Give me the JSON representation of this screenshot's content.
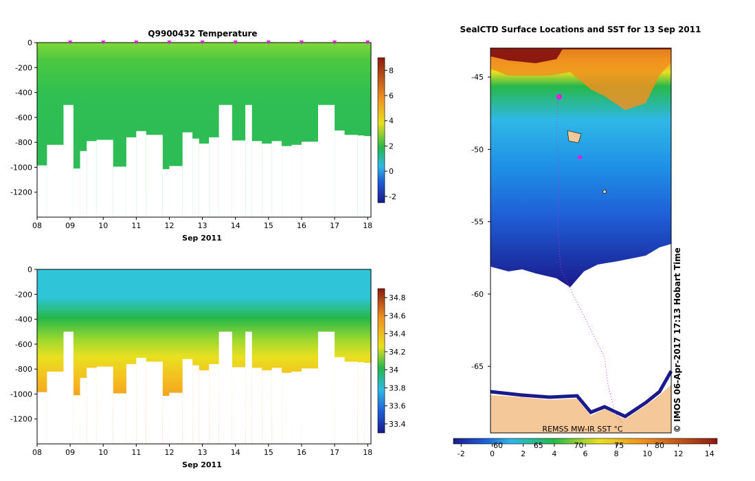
{
  "chart_data": [
    {
      "type": "heatmap",
      "title": "Q9900432  Temperature",
      "xlabel": "Sep 2011",
      "ylabel": "",
      "x_ticks": [
        "08",
        "09",
        "10",
        "11",
        "12",
        "13",
        "14",
        "15",
        "16",
        "17",
        "18"
      ],
      "x_range": [
        8,
        18.1
      ],
      "y_ticks": [
        0,
        -200,
        -400,
        -600,
        -800,
        -1000,
        -1200
      ],
      "ylim": [
        -1400,
        0
      ],
      "colorbar_ticks": [
        8,
        6,
        4,
        2,
        0,
        -2
      ],
      "colorbar_range": [
        -2.5,
        9
      ],
      "profile_markers": [
        9,
        10,
        11,
        12,
        13,
        14,
        15,
        16,
        17,
        18
      ],
      "profile_depths": [
        {
          "x": 8.0,
          "depth": -985
        },
        {
          "x": 8.3,
          "depth": -820
        },
        {
          "x": 8.8,
          "depth": -500
        },
        {
          "x": 9.1,
          "depth": -1010
        },
        {
          "x": 9.3,
          "depth": -870
        },
        {
          "x": 9.5,
          "depth": -790
        },
        {
          "x": 9.8,
          "depth": -780
        },
        {
          "x": 10.3,
          "depth": -995
        },
        {
          "x": 10.7,
          "depth": -760
        },
        {
          "x": 11.0,
          "depth": -710
        },
        {
          "x": 11.3,
          "depth": -740
        },
        {
          "x": 11.8,
          "depth": -1015
        },
        {
          "x": 12.0,
          "depth": -990
        },
        {
          "x": 12.4,
          "depth": -720
        },
        {
          "x": 12.7,
          "depth": -770
        },
        {
          "x": 12.9,
          "depth": -810
        },
        {
          "x": 13.2,
          "depth": -760
        },
        {
          "x": 13.5,
          "depth": -500
        },
        {
          "x": 13.9,
          "depth": -785
        },
        {
          "x": 14.3,
          "depth": -500
        },
        {
          "x": 14.5,
          "depth": -790
        },
        {
          "x": 14.8,
          "depth": -810
        },
        {
          "x": 15.1,
          "depth": -790
        },
        {
          "x": 15.4,
          "depth": -830
        },
        {
          "x": 15.7,
          "depth": -820
        },
        {
          "x": 16.0,
          "depth": -795
        },
        {
          "x": 16.5,
          "depth": -500
        },
        {
          "x": 17.0,
          "depth": -705
        },
        {
          "x": 17.3,
          "depth": -740
        },
        {
          "x": 17.7,
          "depth": -745
        },
        {
          "x": 17.9,
          "depth": -750
        }
      ]
    },
    {
      "type": "heatmap",
      "title": "",
      "xlabel": "Sep 2011",
      "ylabel": "",
      "x_ticks": [
        "08",
        "09",
        "10",
        "11",
        "12",
        "13",
        "14",
        "15",
        "16",
        "17",
        "18"
      ],
      "x_range": [
        8,
        18.1
      ],
      "y_ticks": [
        0,
        -200,
        -400,
        -600,
        -800,
        -1000,
        -1200
      ],
      "ylim": [
        -1400,
        0
      ],
      "colorbar_ticks": [
        34.8,
        34.6,
        34.4,
        34.2,
        34,
        33.8,
        33.6,
        33.4
      ],
      "colorbar_range": [
        33.3,
        34.9
      ]
    },
    {
      "type": "heatmap",
      "title": "SealCTD Surface Locations and SST for 13 Sep 2011",
      "xlabel": "",
      "ylabel": "",
      "y_ticks": [
        -45,
        -50,
        -55,
        -60,
        -65
      ],
      "lat_range": [
        -69.6,
        -43.0
      ],
      "colorbar_ticks": [
        -2,
        0,
        2,
        4,
        6,
        8,
        10,
        12,
        14
      ],
      "colorbar_range": [
        -2.5,
        14.5
      ],
      "colorbar_secondary_ticks": [
        60,
        65,
        70,
        75,
        80
      ],
      "colorbar_label": "REMSS MW-IR SST °C",
      "credit": "© IMOS 06-Apr-2017 17:13 Hobart Time"
    }
  ],
  "palette": {
    "dark_blue": "#1a1a8c",
    "blue": "#1f5fd6",
    "cyan": "#2fb8e6",
    "green": "#26b84a",
    "yellow": "#e8e020",
    "orange": "#f09020",
    "dark_red": "#8c1a10",
    "land": "#f5c89a",
    "marker": "#e020e0"
  }
}
